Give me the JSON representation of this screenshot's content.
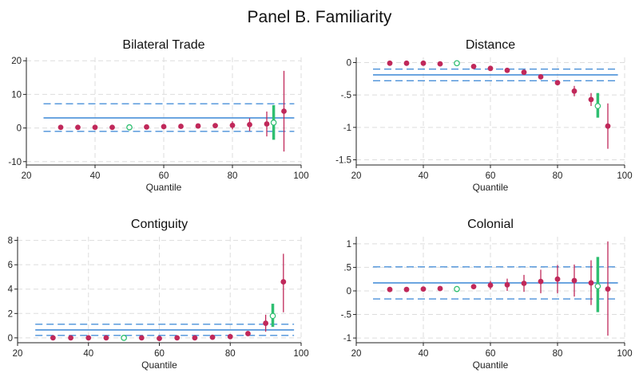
{
  "figure": {
    "title": "Panel B. Familiarity"
  },
  "colors": {
    "estimate": "#c0285a",
    "mean_line": "#4a90d9",
    "ci_dash": "#4a90d9",
    "reference": "#2fbf71",
    "grid": "#dddddd"
  },
  "chart_data": [
    {
      "type": "scatter",
      "title": "Bilateral Trade",
      "xlabel": "Quantile",
      "xlim": [
        20,
        100
      ],
      "xticks": [
        20,
        40,
        60,
        80,
        100
      ],
      "xtick_labels": [
        "20",
        "40",
        "60",
        "80",
        "100"
      ],
      "ylim": [
        -11,
        21
      ],
      "yticks": [
        -10,
        0,
        10,
        20
      ],
      "ytick_labels": [
        "-10",
        "0",
        "10",
        "20"
      ],
      "mean_line": {
        "y": 3.0,
        "from": 25,
        "to": 98
      },
      "ci_band": {
        "lower": -1.0,
        "upper": 7.2,
        "from": 25,
        "to": 98
      },
      "reference": {
        "x": 50,
        "y": 0.2
      },
      "reference_ci": {
        "x": 92,
        "y": 1.6,
        "lower": -3.5,
        "upper": 6.8
      },
      "series": [
        {
          "x": 30,
          "y": 0.2,
          "lower": 0.2,
          "upper": 0.2
        },
        {
          "x": 35,
          "y": 0.2,
          "lower": 0.2,
          "upper": 0.2
        },
        {
          "x": 40,
          "y": 0.2,
          "lower": 0.2,
          "upper": 0.2
        },
        {
          "x": 45,
          "y": 0.2,
          "lower": 0.2,
          "upper": 0.2
        },
        {
          "x": 55,
          "y": 0.3,
          "lower": 0.3,
          "upper": 0.3
        },
        {
          "x": 60,
          "y": 0.4,
          "lower": 0.4,
          "upper": 0.4
        },
        {
          "x": 65,
          "y": 0.5,
          "lower": 0.5,
          "upper": 0.5
        },
        {
          "x": 70,
          "y": 0.6,
          "lower": 0.6,
          "upper": 0.6
        },
        {
          "x": 75,
          "y": 0.7,
          "lower": 0.7,
          "upper": 0.7
        },
        {
          "x": 80,
          "y": 0.8,
          "lower": -0.4,
          "upper": 2.0
        },
        {
          "x": 85,
          "y": 1.0,
          "lower": -0.9,
          "upper": 2.9
        },
        {
          "x": 90,
          "y": 1.2,
          "lower": -2.5,
          "upper": 4.9
        },
        {
          "x": 95,
          "y": 5.0,
          "lower": -7.0,
          "upper": 17.0
        }
      ]
    },
    {
      "type": "scatter",
      "title": "Distance",
      "xlabel": "Quantile",
      "xlim": [
        20,
        100
      ],
      "xticks": [
        20,
        40,
        60,
        80,
        100
      ],
      "xtick_labels": [
        "20",
        "40",
        "60",
        "80",
        "100"
      ],
      "ylim": [
        -1.58,
        0.08
      ],
      "yticks": [
        0,
        -0.5,
        -1,
        -1.5
      ],
      "ytick_labels": [
        "0",
        "-.5",
        "-1",
        "-1.5"
      ],
      "mean_line": {
        "y": -0.19,
        "from": 25,
        "to": 98
      },
      "ci_band": {
        "lower": -0.28,
        "upper": -0.1,
        "from": 25,
        "to": 98
      },
      "reference": {
        "x": 50,
        "y": -0.01
      },
      "reference_ci": {
        "x": 92,
        "y": -0.67,
        "lower": -0.85,
        "upper": -0.47
      },
      "series": [
        {
          "x": 30,
          "y": -0.01,
          "lower": -0.01,
          "upper": -0.01
        },
        {
          "x": 35,
          "y": -0.01,
          "lower": -0.01,
          "upper": -0.01
        },
        {
          "x": 40,
          "y": -0.01,
          "lower": -0.01,
          "upper": -0.01
        },
        {
          "x": 45,
          "y": -0.02,
          "lower": -0.02,
          "upper": -0.02
        },
        {
          "x": 55,
          "y": -0.06,
          "lower": -0.06,
          "upper": -0.06
        },
        {
          "x": 60,
          "y": -0.09,
          "lower": -0.09,
          "upper": -0.09
        },
        {
          "x": 65,
          "y": -0.12,
          "lower": -0.12,
          "upper": -0.12
        },
        {
          "x": 70,
          "y": -0.15,
          "lower": -0.18,
          "upper": -0.12
        },
        {
          "x": 75,
          "y": -0.22,
          "lower": -0.25,
          "upper": -0.19
        },
        {
          "x": 80,
          "y": -0.31,
          "lower": -0.35,
          "upper": -0.27
        },
        {
          "x": 85,
          "y": -0.44,
          "lower": -0.52,
          "upper": -0.36
        },
        {
          "x": 90,
          "y": -0.57,
          "lower": -0.67,
          "upper": -0.47
        },
        {
          "x": 95,
          "y": -0.98,
          "lower": -1.33,
          "upper": -0.63
        }
      ]
    },
    {
      "type": "scatter",
      "title": "Contiguity",
      "xlabel": "Quantile",
      "xlim": [
        20,
        100
      ],
      "xticks": [
        20,
        40,
        60,
        80,
        100
      ],
      "xtick_labels": [
        "20",
        "40",
        "60",
        "80",
        "100"
      ],
      "ylim": [
        -0.4,
        8.3
      ],
      "yticks": [
        0,
        2,
        4,
        6,
        8
      ],
      "ytick_labels": [
        "0",
        "2",
        "4",
        "6",
        "8"
      ],
      "mean_line": {
        "y": 0.65,
        "from": 25,
        "to": 98
      },
      "ci_band": {
        "lower": 0.2,
        "upper": 1.12,
        "from": 25,
        "to": 98
      },
      "reference": {
        "x": 50,
        "y": 0.0
      },
      "reference_ci": {
        "x": 92,
        "y": 1.8,
        "lower": 0.9,
        "upper": 2.8
      },
      "series": [
        {
          "x": 30,
          "y": 0.0,
          "lower": 0.0,
          "upper": 0.0
        },
        {
          "x": 35,
          "y": 0.0,
          "lower": 0.0,
          "upper": 0.0
        },
        {
          "x": 40,
          "y": 0.0,
          "lower": 0.0,
          "upper": 0.0
        },
        {
          "x": 45,
          "y": 0.0,
          "lower": 0.0,
          "upper": 0.0
        },
        {
          "x": 55,
          "y": 0.0,
          "lower": 0.0,
          "upper": 0.0
        },
        {
          "x": 60,
          "y": -0.05,
          "lower": -0.05,
          "upper": -0.05
        },
        {
          "x": 65,
          "y": 0.0,
          "lower": 0.0,
          "upper": 0.0
        },
        {
          "x": 70,
          "y": 0.0,
          "lower": 0.0,
          "upper": 0.0
        },
        {
          "x": 75,
          "y": 0.05,
          "lower": 0.05,
          "upper": 0.05
        },
        {
          "x": 80,
          "y": 0.1,
          "lower": 0.1,
          "upper": 0.1
        },
        {
          "x": 85,
          "y": 0.35,
          "lower": 0.15,
          "upper": 0.55
        },
        {
          "x": 90,
          "y": 1.2,
          "lower": 0.5,
          "upper": 1.9
        },
        {
          "x": 95,
          "y": 4.6,
          "lower": 2.1,
          "upper": 6.9
        }
      ]
    },
    {
      "type": "scatter",
      "title": "Colonial",
      "xlabel": "Quantile",
      "xlim": [
        20,
        100
      ],
      "xticks": [
        20,
        40,
        60,
        80,
        100
      ],
      "xtick_labels": [
        "20",
        "40",
        "60",
        "80",
        "100"
      ],
      "ylim": [
        -1.1,
        1.15
      ],
      "yticks": [
        1,
        0.5,
        0,
        -0.5,
        -1
      ],
      "ytick_labels": [
        "1",
        ".5",
        "0",
        "-.5",
        "-1"
      ],
      "mean_line": {
        "y": 0.17,
        "from": 25,
        "to": 98
      },
      "ci_band": {
        "lower": -0.17,
        "upper": 0.51,
        "from": 25,
        "to": 98
      },
      "reference": {
        "x": 50,
        "y": 0.04
      },
      "reference_ci": {
        "x": 92,
        "y": 0.1,
        "lower": -0.45,
        "upper": 0.72
      },
      "series": [
        {
          "x": 30,
          "y": 0.03,
          "lower": 0.03,
          "upper": 0.03
        },
        {
          "x": 35,
          "y": 0.03,
          "lower": 0.03,
          "upper": 0.03
        },
        {
          "x": 40,
          "y": 0.04,
          "lower": 0.04,
          "upper": 0.04
        },
        {
          "x": 45,
          "y": 0.05,
          "lower": 0.05,
          "upper": 0.05
        },
        {
          "x": 55,
          "y": 0.09,
          "lower": 0.04,
          "upper": 0.14
        },
        {
          "x": 60,
          "y": 0.12,
          "lower": 0.03,
          "upper": 0.21
        },
        {
          "x": 65,
          "y": 0.13,
          "lower": 0.0,
          "upper": 0.26
        },
        {
          "x": 70,
          "y": 0.16,
          "lower": -0.02,
          "upper": 0.34
        },
        {
          "x": 75,
          "y": 0.2,
          "lower": -0.05,
          "upper": 0.45
        },
        {
          "x": 80,
          "y": 0.25,
          "lower": -0.05,
          "upper": 0.55
        },
        {
          "x": 85,
          "y": 0.22,
          "lower": -0.12,
          "upper": 0.56
        },
        {
          "x": 90,
          "y": 0.17,
          "lower": -0.3,
          "upper": 0.65
        },
        {
          "x": 95,
          "y": 0.04,
          "lower": -0.95,
          "upper": 1.05
        }
      ]
    }
  ]
}
